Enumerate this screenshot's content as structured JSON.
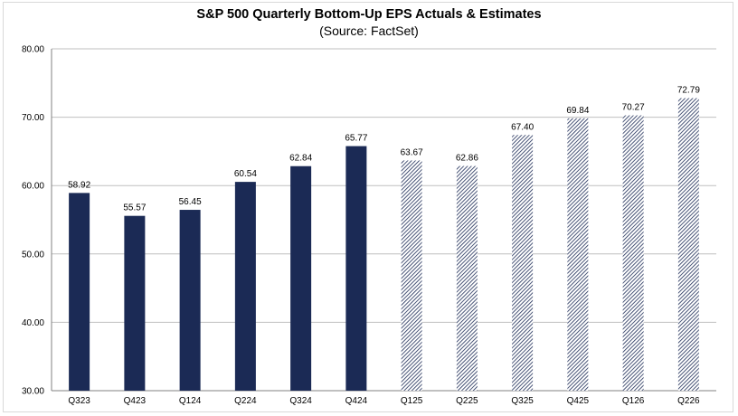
{
  "chart_data": {
    "type": "bar",
    "title": "S&P 500 Quarterly Bottom-Up EPS Actuals & Estimates",
    "subtitle": "(Source: FactSet)",
    "categories": [
      "Q323",
      "Q423",
      "Q124",
      "Q224",
      "Q324",
      "Q424",
      "Q125",
      "Q225",
      "Q325",
      "Q425",
      "Q126",
      "Q226"
    ],
    "values": [
      58.92,
      55.57,
      56.45,
      60.54,
      62.84,
      65.77,
      63.67,
      62.86,
      67.4,
      69.84,
      70.27,
      72.79
    ],
    "value_labels": [
      "58.92",
      "55.57",
      "56.45",
      "60.54",
      "62.84",
      "65.77",
      "63.67",
      "62.86",
      "67.40",
      "69.84",
      "70.27",
      "72.79"
    ],
    "bar_style": [
      "solid",
      "solid",
      "solid",
      "solid",
      "solid",
      "solid",
      "hatched",
      "hatched",
      "hatched",
      "hatched",
      "hatched",
      "hatched"
    ],
    "ylim": [
      30,
      80
    ],
    "yticks": [
      "30.00",
      "40.00",
      "50.00",
      "60.00",
      "70.00",
      "80.00"
    ],
    "grid": "horizontal",
    "colors": {
      "bar": "#1b2a55",
      "grid": "#bfbfbf",
      "axis": "#808080"
    }
  }
}
